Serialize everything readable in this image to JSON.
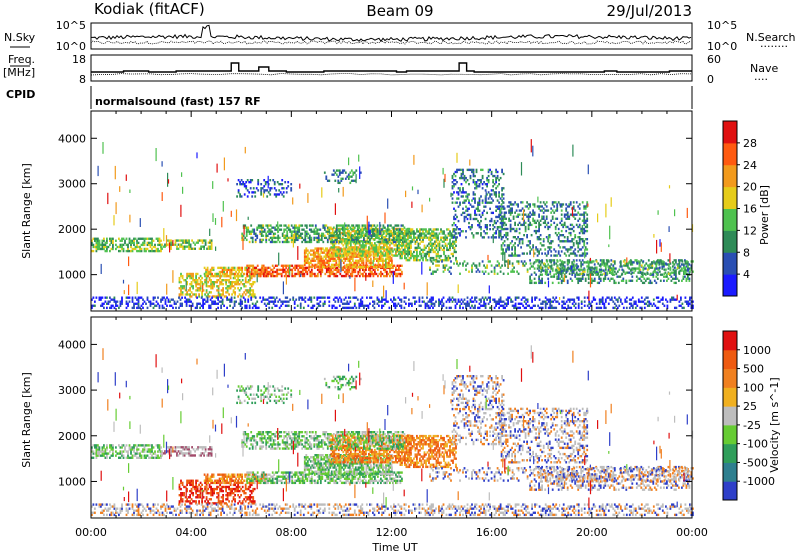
{
  "header": {
    "station": "Kodiak (fitACF)",
    "beam": "Beam 09",
    "date": "29/Jul/2013"
  },
  "strip": {
    "left_sky": "N.Sky",
    "right_search": "N.Search",
    "right_search_dots": "........",
    "left_freq_line1": "Freq.",
    "left_freq_line2": "[MHz]",
    "right_nave": "Nave",
    "right_nave_dots": "....",
    "cpid_label": "CPID",
    "cpid_text": "normalsound (fast) 157 RF",
    "noise_left_ticks": [
      "10^5",
      "10^0"
    ],
    "noise_right_ticks": [
      "10^5",
      "10^0"
    ],
    "freq_left_ticks": [
      "18",
      "8"
    ],
    "nave_right_ticks": [
      "60",
      "0"
    ]
  },
  "chart_data": [
    {
      "type": "heatmap",
      "title": "",
      "xlabel": "Time UT",
      "ylabel": "Slant Range [km]",
      "xlim": [
        "00:00",
        "24:00"
      ],
      "x_ticks": [
        "00:00",
        "04:00",
        "08:00",
        "12:00",
        "16:00",
        "20:00",
        "00:00"
      ],
      "ylim": [
        200,
        4600
      ],
      "y_ticks": [
        1000,
        2000,
        3000,
        4000
      ],
      "colorbar": {
        "label": "Power [dB]",
        "ticks": [
          4,
          8,
          12,
          16,
          20,
          24,
          28
        ],
        "range": [
          0,
          32
        ],
        "colors": [
          "#1b1bff",
          "#2a4fb3",
          "#2e8b57",
          "#4fc24f",
          "#e6cc1a",
          "#f29a1c",
          "#ff5a10",
          "#e01010"
        ]
      }
    },
    {
      "type": "heatmap",
      "title": "",
      "xlabel": "Time UT",
      "ylabel": "Slant Range [km]",
      "xlim": [
        "00:00",
        "24:00"
      ],
      "x_ticks": [
        "00:00",
        "04:00",
        "08:00",
        "12:00",
        "16:00",
        "20:00",
        "00:00"
      ],
      "ylim": [
        200,
        4600
      ],
      "y_ticks": [
        1000,
        2000,
        3000,
        4000
      ],
      "colorbar": {
        "label": "Velocity [m s^-1]",
        "ticks": [
          "1000",
          "500",
          "100",
          "25",
          "-25",
          "-100",
          "-500",
          "-1000"
        ],
        "colors": [
          "#2e3fc9",
          "#2e7f8f",
          "#2f9e5a",
          "#66cc33",
          "#bdbdbd",
          "#f0b020",
          "#f08020",
          "#ee5a10",
          "#e01010"
        ]
      }
    }
  ]
}
